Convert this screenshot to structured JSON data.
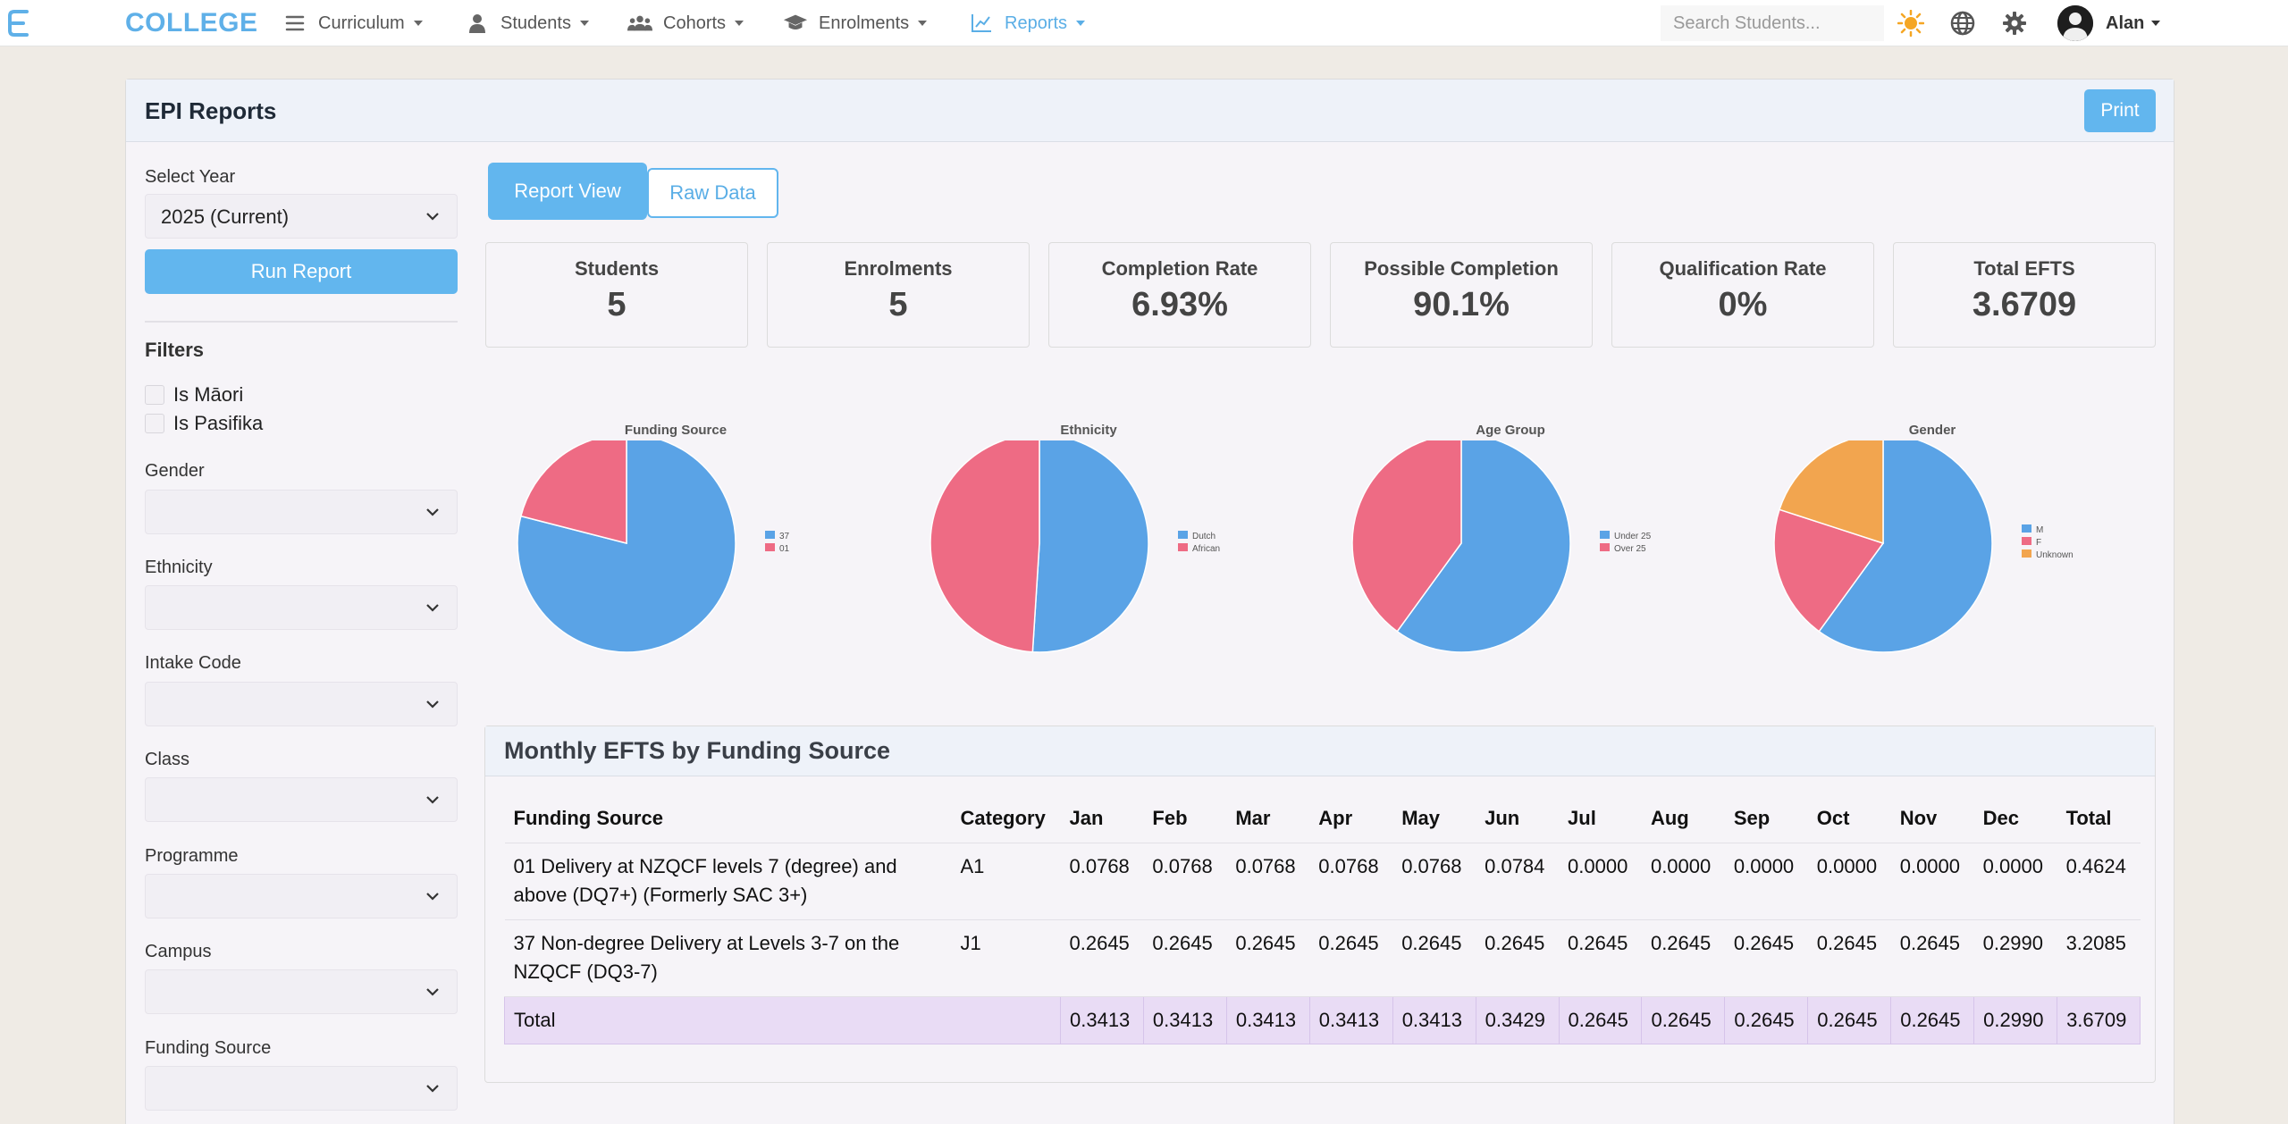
{
  "nav": {
    "logo_text": "COLLEGE",
    "items": [
      {
        "label": "Curriculum",
        "icon": "list-icon"
      },
      {
        "label": "Students",
        "icon": "user-icon"
      },
      {
        "label": "Cohorts",
        "icon": "users-icon"
      },
      {
        "label": "Enrolments",
        "icon": "graduation-cap-icon"
      },
      {
        "label": "Reports",
        "icon": "line-chart-icon",
        "active": true
      }
    ],
    "search_placeholder": "Search Students...",
    "user_name": "Alan"
  },
  "page": {
    "title": "EPI Reports",
    "print_label": "Print"
  },
  "sidebar": {
    "year_label": "Select Year",
    "year_value": "2025 (Current)",
    "run_label": "Run Report",
    "filters_heading": "Filters",
    "checkboxes": [
      "Is Māori",
      "Is Pasifika"
    ],
    "selects": [
      "Gender",
      "Ethnicity",
      "Intake Code",
      "Class",
      "Programme",
      "Campus",
      "Funding Source"
    ]
  },
  "tabs": {
    "report": "Report View",
    "raw": "Raw Data"
  },
  "stats": [
    {
      "label": "Students",
      "value": "5"
    },
    {
      "label": "Enrolments",
      "value": "5"
    },
    {
      "label": "Completion Rate",
      "value": "6.93%"
    },
    {
      "label": "Possible Completion",
      "value": "90.1%"
    },
    {
      "label": "Qualification Rate",
      "value": "0%"
    },
    {
      "label": "Total EFTS",
      "value": "3.6709"
    }
  ],
  "colors": {
    "blue": "#5aa3e6",
    "pink": "#ee6b84",
    "orange": "#f2a54f",
    "accent": "#62b6ee"
  },
  "chart_data": [
    {
      "type": "pie",
      "title": "Funding Source",
      "labels": [
        "37",
        "01"
      ],
      "values": [
        79,
        21
      ],
      "colors": [
        "#5aa3e6",
        "#ee6b84"
      ]
    },
    {
      "type": "pie",
      "title": "Ethnicity",
      "labels": [
        "Dutch",
        "African"
      ],
      "values": [
        51,
        49
      ],
      "colors": [
        "#5aa3e6",
        "#ee6b84"
      ]
    },
    {
      "type": "pie",
      "title": "Age Group",
      "labels": [
        "Under 25",
        "Over 25"
      ],
      "values": [
        60,
        40
      ],
      "colors": [
        "#5aa3e6",
        "#ee6b84"
      ]
    },
    {
      "type": "pie",
      "title": "Gender",
      "labels": [
        "M",
        "F",
        "Unknown"
      ],
      "values": [
        60,
        20,
        20
      ],
      "colors": [
        "#5aa3e6",
        "#ee6b84",
        "#f2a54f"
      ]
    }
  ],
  "table": {
    "title": "Monthly EFTS by Funding Source",
    "headers": [
      "Funding Source",
      "Category",
      "Jan",
      "Feb",
      "Mar",
      "Apr",
      "May",
      "Jun",
      "Jul",
      "Aug",
      "Sep",
      "Oct",
      "Nov",
      "Dec",
      "Total"
    ],
    "rows": [
      [
        "01 Delivery at NZQCF levels 7 (degree) and above (DQ7+) (Formerly SAC 3+)",
        "A1",
        "0.0768",
        "0.0768",
        "0.0768",
        "0.0768",
        "0.0768",
        "0.0784",
        "0.0000",
        "0.0000",
        "0.0000",
        "0.0000",
        "0.0000",
        "0.0000",
        "0.4624"
      ],
      [
        "37 Non-degree Delivery at Levels 3-7 on the NZQCF (DQ3-7)",
        "J1",
        "0.2645",
        "0.2645",
        "0.2645",
        "0.2645",
        "0.2645",
        "0.2645",
        "0.2645",
        "0.2645",
        "0.2645",
        "0.2645",
        "0.2645",
        "0.2990",
        "3.2085"
      ]
    ],
    "total_row": [
      "Total",
      "0.3413",
      "0.3413",
      "0.3413",
      "0.3413",
      "0.3413",
      "0.3429",
      "0.2645",
      "0.2645",
      "0.2645",
      "0.2645",
      "0.2645",
      "0.2990",
      "3.6709"
    ]
  }
}
